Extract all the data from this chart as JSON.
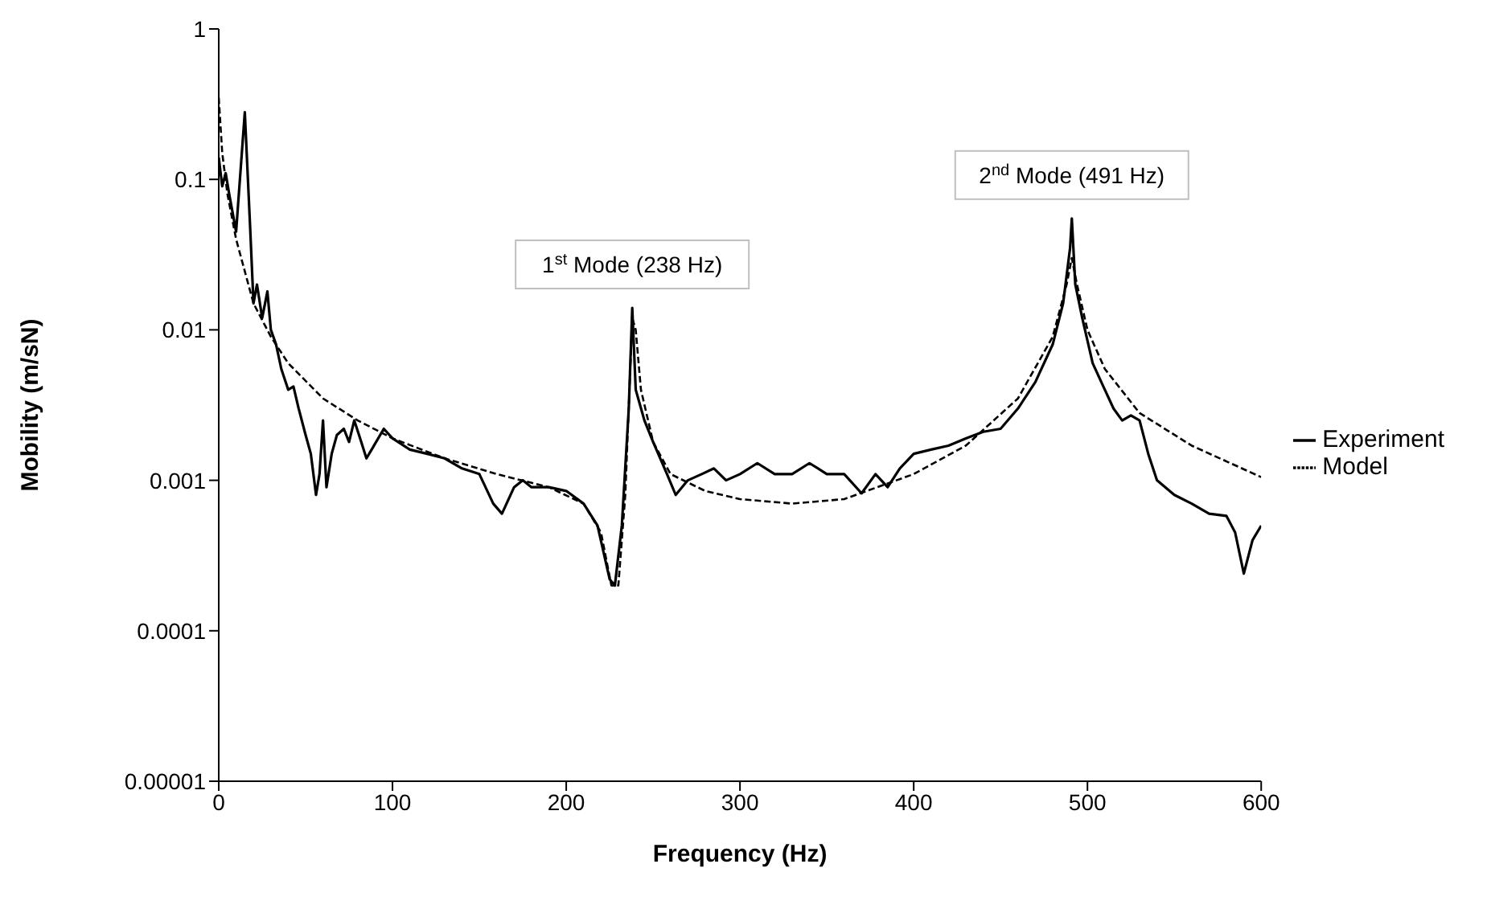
{
  "chart_data": {
    "type": "line",
    "xlabel": "Frequency (Hz)",
    "ylabel": "Mobility (m/sN)",
    "log": "y",
    "xlim": [
      0,
      600
    ],
    "xticks": [
      0,
      100,
      200,
      300,
      400,
      500,
      600
    ],
    "ylim": [
      1e-05,
      1
    ],
    "yticks": [
      {
        "value": 1e-05,
        "label": "0.00001"
      },
      0.0001,
      0.001,
      0.01,
      0.1,
      1
    ],
    "grid": false,
    "legend": "right",
    "marker": "none",
    "series": [
      {
        "name": "Experiment",
        "color": "#000000",
        "line_style": "solid",
        "x": [
          0,
          2,
          4,
          6,
          10,
          15,
          18,
          20,
          22,
          25,
          28,
          30,
          33,
          36,
          40,
          43,
          46,
          50,
          53,
          56,
          58,
          60,
          62,
          65,
          68,
          72,
          75,
          78,
          82,
          85,
          88,
          95,
          100,
          110,
          120,
          130,
          140,
          150,
          158,
          163,
          170,
          175,
          180,
          190,
          200,
          210,
          218,
          225,
          228,
          232,
          236,
          238,
          240,
          245,
          250,
          258,
          263,
          270,
          278,
          285,
          292,
          300,
          310,
          320,
          330,
          340,
          350,
          360,
          370,
          378,
          385,
          392,
          400,
          410,
          420,
          430,
          440,
          450,
          460,
          470,
          480,
          486,
          490,
          491,
          493,
          497,
          503,
          510,
          515,
          520,
          525,
          530,
          535,
          540,
          550,
          560,
          570,
          580,
          585,
          590,
          595,
          600
        ],
        "values": [
          0.14,
          0.09,
          0.11,
          0.08,
          0.045,
          0.28,
          0.05,
          0.015,
          0.02,
          0.012,
          0.018,
          0.01,
          0.008,
          0.0055,
          0.004,
          0.0042,
          0.003,
          0.002,
          0.0015,
          0.0008,
          0.0011,
          0.0025,
          0.0009,
          0.0015,
          0.002,
          0.0022,
          0.0018,
          0.0025,
          0.0018,
          0.0014,
          0.0016,
          0.0022,
          0.0019,
          0.0016,
          0.0015,
          0.0014,
          0.0012,
          0.0011,
          0.0007,
          0.0006,
          0.0009,
          0.001,
          0.0009,
          0.0009,
          0.00085,
          0.0007,
          0.0005,
          0.00022,
          0.0002,
          0.0005,
          0.003,
          0.014,
          0.004,
          0.0025,
          0.0018,
          0.0011,
          0.0008,
          0.001,
          0.0011,
          0.0012,
          0.001,
          0.0011,
          0.0013,
          0.0011,
          0.0011,
          0.0013,
          0.0011,
          0.0011,
          0.00082,
          0.0011,
          0.0009,
          0.0012,
          0.0015,
          0.0016,
          0.0017,
          0.0019,
          0.0021,
          0.0022,
          0.003,
          0.0045,
          0.008,
          0.015,
          0.035,
          0.055,
          0.02,
          0.012,
          0.006,
          0.004,
          0.003,
          0.0025,
          0.0027,
          0.0025,
          0.0015,
          0.001,
          0.0008,
          0.0007,
          0.0006,
          0.00058,
          0.00045,
          0.00024,
          0.0004,
          0.0005
        ]
      },
      {
        "name": "Model",
        "color": "#000000",
        "line_style": "dashed",
        "x": [
          0,
          2,
          5,
          10,
          20,
          30,
          40,
          60,
          80,
          100,
          130,
          160,
          190,
          210,
          220,
          226,
          230,
          234,
          238,
          240,
          243,
          250,
          260,
          280,
          300,
          330,
          360,
          400,
          430,
          460,
          480,
          488,
          491,
          494,
          500,
          510,
          530,
          560,
          600
        ],
        "values": [
          0.35,
          0.15,
          0.08,
          0.04,
          0.015,
          0.009,
          0.006,
          0.0035,
          0.0025,
          0.0019,
          0.0014,
          0.0011,
          0.0009,
          0.0007,
          0.00045,
          0.0002,
          0.0002,
          0.0008,
          0.012,
          0.01,
          0.004,
          0.0018,
          0.0011,
          0.00085,
          0.00075,
          0.0007,
          0.00075,
          0.0011,
          0.0017,
          0.0035,
          0.009,
          0.02,
          0.03,
          0.02,
          0.01,
          0.0055,
          0.0028,
          0.0017,
          0.00105
        ]
      }
    ],
    "annotations": [
      {
        "text": "1$^{st}$ Mode (238 Hz)",
        "x": 238,
        "y": 0.014
      },
      {
        "text": "2$^{nd}$ Mode (491 Hz)",
        "x": 491,
        "y": 0.055
      }
    ]
  }
}
